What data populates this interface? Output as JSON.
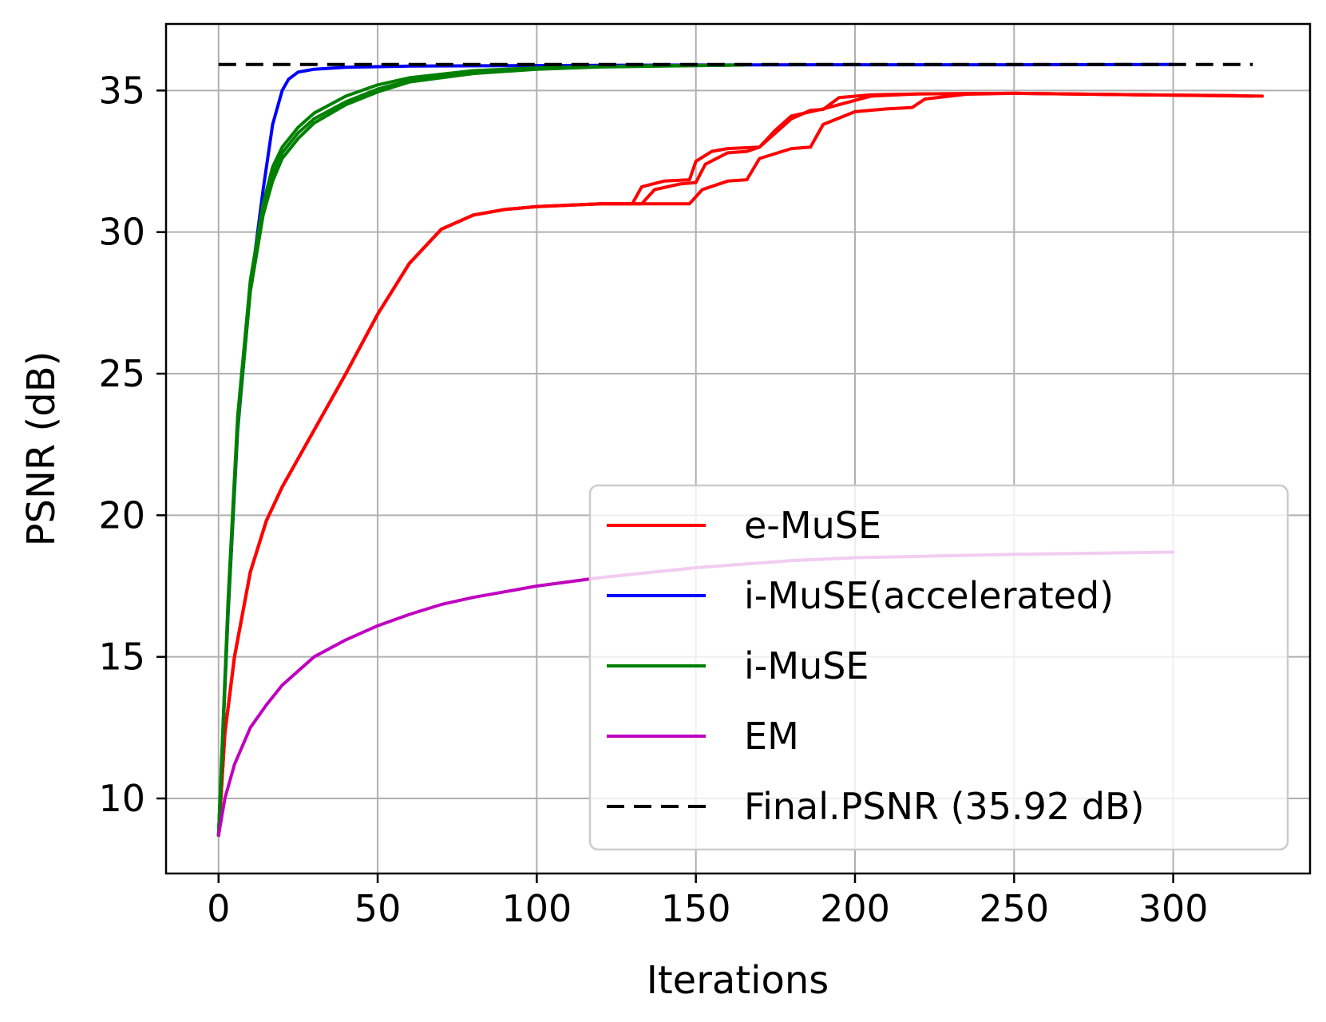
{
  "chart_data": {
    "type": "line",
    "title": "",
    "xlabel": "Iterations",
    "ylabel": "PSNR (dB)",
    "xlim": [
      -16.5,
      343
    ],
    "ylim": [
      7.35,
      37.35
    ],
    "xticks": [
      0,
      50,
      100,
      150,
      200,
      250,
      300
    ],
    "yticks": [
      10,
      15,
      20,
      25,
      30,
      35
    ],
    "grid": true,
    "legend_position": "lower-right",
    "series": [
      {
        "name": "e-MuSE",
        "color": "#ff0000",
        "runs": [
          {
            "x": [
              0,
              2,
              5,
              10,
              15,
              20,
              30,
              40,
              50,
              60,
              70,
              80,
              90,
              100,
              120,
              130,
              133,
              140,
              148,
              150,
              155,
              160,
              170,
              175,
              180,
              190,
              195,
              205,
              220,
              250,
              290,
              320
            ],
            "y": [
              8.7,
              12.3,
              15.0,
              18.0,
              19.8,
              21.0,
              23.0,
              25.0,
              27.1,
              28.9,
              30.1,
              30.6,
              30.8,
              30.9,
              31.0,
              31.0,
              31.6,
              31.8,
              31.85,
              32.5,
              32.85,
              32.95,
              33.0,
              33.6,
              34.1,
              34.35,
              34.5,
              34.8,
              34.88,
              34.9,
              34.85,
              34.82
            ]
          },
          {
            "x": [
              0,
              2,
              5,
              10,
              15,
              20,
              30,
              40,
              50,
              60,
              70,
              80,
              90,
              100,
              120,
              133,
              137,
              145,
              150,
              153,
              160,
              166,
              170,
              180,
              186,
              190,
              195,
              205,
              220,
              250,
              290,
              325
            ],
            "y": [
              8.7,
              12.3,
              15.0,
              18.0,
              19.8,
              21.0,
              23.0,
              25.0,
              27.1,
              28.9,
              30.1,
              30.6,
              30.8,
              30.9,
              31.0,
              31.0,
              31.5,
              31.7,
              31.75,
              32.4,
              32.8,
              32.85,
              33.0,
              34.0,
              34.3,
              34.33,
              34.75,
              34.85,
              34.88,
              34.9,
              34.85,
              34.8
            ]
          },
          {
            "x": [
              0,
              2,
              5,
              10,
              15,
              20,
              30,
              40,
              50,
              60,
              70,
              80,
              90,
              100,
              120,
              148,
              152,
              160,
              166,
              170,
              180,
              186,
              190,
              200,
              210,
              218,
              222,
              235,
              250,
              290,
              328
            ],
            "y": [
              8.7,
              12.3,
              15.0,
              18.0,
              19.8,
              21.0,
              23.0,
              25.0,
              27.1,
              28.9,
              30.1,
              30.6,
              30.8,
              30.9,
              31.0,
              31.0,
              31.5,
              31.8,
              31.85,
              32.6,
              32.95,
              33.0,
              33.8,
              34.25,
              34.35,
              34.4,
              34.7,
              34.87,
              34.9,
              34.85,
              34.8
            ]
          }
        ]
      },
      {
        "name": "i-MuSE(accelerated)",
        "color": "#0000ff",
        "runs": [
          {
            "x": [
              0,
              3,
              6,
              10,
              14,
              17,
              20,
              22,
              25,
              30,
              40,
              60,
              100,
              150,
              200,
              250,
              300
            ],
            "y": [
              8.7,
              16.5,
              23.0,
              28.0,
              31.5,
              33.8,
              35.0,
              35.4,
              35.65,
              35.75,
              35.82,
              35.86,
              35.88,
              35.9,
              35.91,
              35.91,
              35.92
            ]
          }
        ]
      },
      {
        "name": "i-MuSE",
        "color": "#008000",
        "runs": [
          {
            "x": [
              0,
              3,
              6,
              10,
              14,
              17,
              20,
              25,
              30,
              40,
              50,
              60,
              80,
              100,
              120,
              140,
              165
            ],
            "y": [
              8.7,
              17.0,
              23.5,
              28.3,
              31.0,
              32.3,
              33.0,
              33.7,
              34.2,
              34.8,
              35.2,
              35.45,
              35.7,
              35.8,
              35.85,
              35.88,
              35.9
            ]
          },
          {
            "x": [
              0,
              3,
              6,
              10,
              14,
              17,
              20,
              25,
              30,
              40,
              50,
              60,
              80,
              100,
              120,
              140,
              165
            ],
            "y": [
              8.7,
              16.8,
              23.3,
              28.1,
              30.8,
              32.0,
              32.8,
              33.5,
              34.0,
              34.6,
              35.05,
              35.35,
              35.65,
              35.78,
              35.84,
              35.87,
              35.9
            ]
          },
          {
            "x": [
              0,
              3,
              6,
              10,
              14,
              17,
              20,
              25,
              30,
              40,
              50,
              60,
              80,
              100,
              120,
              140,
              165
            ],
            "y": [
              8.7,
              16.6,
              23.1,
              27.9,
              30.6,
              31.8,
              32.6,
              33.3,
              33.85,
              34.5,
              34.95,
              35.3,
              35.6,
              35.75,
              35.83,
              35.86,
              35.9
            ]
          }
        ]
      },
      {
        "name": "EM",
        "color": "#bf00bf",
        "runs": [
          {
            "x": [
              0,
              2,
              5,
              10,
              15,
              20,
              30,
              40,
              50,
              60,
              70,
              80,
              100,
              120,
              150,
              180,
              200,
              250,
              300
            ],
            "y": [
              8.7,
              10.0,
              11.2,
              12.5,
              13.3,
              14.0,
              15.0,
              15.6,
              16.1,
              16.5,
              16.85,
              17.1,
              17.5,
              17.8,
              18.15,
              18.4,
              18.5,
              18.62,
              18.7
            ]
          }
        ]
      },
      {
        "name": "Final.PSNR (35.92 dB)",
        "color": "#000000",
        "dashed": true,
        "runs": [
          {
            "x": [
              0,
              325
            ],
            "y": [
              35.92,
              35.92
            ]
          }
        ]
      }
    ]
  }
}
